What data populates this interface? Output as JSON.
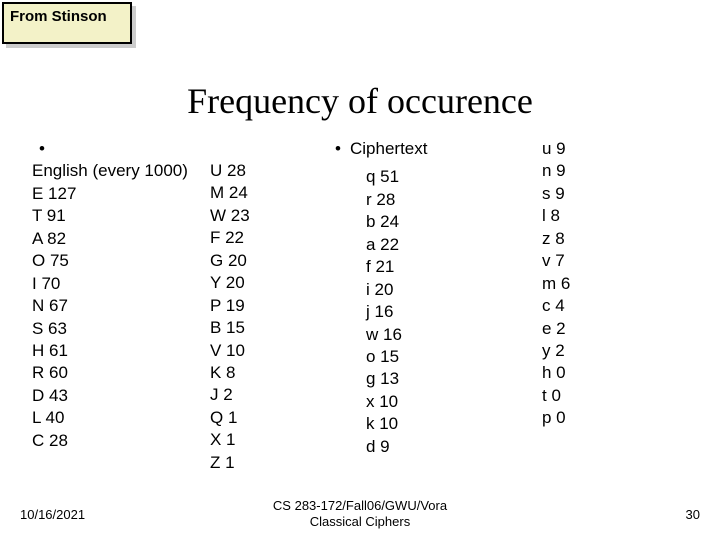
{
  "badge": {
    "text": "From Stinson"
  },
  "title": "Frequency of occurence",
  "english": {
    "header": "English (every 1000)",
    "items": [
      {
        "letter": "E",
        "count": 127
      },
      {
        "letter": "T",
        "count": 91
      },
      {
        "letter": "A",
        "count": 82
      },
      {
        "letter": "O",
        "count": 75
      },
      {
        "letter": "I",
        "count": 70
      },
      {
        "letter": "N",
        "count": 67
      },
      {
        "letter": "S",
        "count": 63
      },
      {
        "letter": "H",
        "count": 61
      },
      {
        "letter": "R",
        "count": 60
      },
      {
        "letter": "D",
        "count": 43
      },
      {
        "letter": "L",
        "count": 40
      },
      {
        "letter": "C",
        "count": 28
      }
    ]
  },
  "english2": {
    "items": [
      {
        "letter": "U",
        "count": 28
      },
      {
        "letter": "M",
        "count": 24
      },
      {
        "letter": "W",
        "count": 23
      },
      {
        "letter": "F",
        "count": 22
      },
      {
        "letter": "G",
        "count": 20
      },
      {
        "letter": "Y",
        "count": 20
      },
      {
        "letter": "P",
        "count": 19
      },
      {
        "letter": "B",
        "count": 15
      },
      {
        "letter": "V",
        "count": 10
      },
      {
        "letter": "K",
        "count": 8
      },
      {
        "letter": "J",
        "count": 2
      },
      {
        "letter": "Q",
        "count": 1
      },
      {
        "letter": "X",
        "count": 1
      },
      {
        "letter": "Z",
        "count": 1
      }
    ]
  },
  "cipher": {
    "header": "Ciphertext",
    "items": [
      {
        "letter": "q",
        "count": 51
      },
      {
        "letter": "r",
        "count": 28
      },
      {
        "letter": "b",
        "count": 24
      },
      {
        "letter": "a",
        "count": 22
      },
      {
        "letter": "f",
        "count": 21
      },
      {
        "letter": "i",
        "count": 20
      },
      {
        "letter": "j",
        "count": 16
      },
      {
        "letter": "w",
        "count": 16
      },
      {
        "letter": "o",
        "count": 15
      },
      {
        "letter": "g",
        "count": 13
      },
      {
        "letter": "x",
        "count": 10
      },
      {
        "letter": "k",
        "count": 10
      },
      {
        "letter": "d",
        "count": 9
      }
    ]
  },
  "cipher2": {
    "items": [
      {
        "letter": "u",
        "count": 9
      },
      {
        "letter": "n",
        "count": 9
      },
      {
        "letter": "s",
        "count": 9
      },
      {
        "letter": "l",
        "count": 8
      },
      {
        "letter": "z",
        "count": 8
      },
      {
        "letter": "v",
        "count": 7
      },
      {
        "letter": "m",
        "count": 6
      },
      {
        "letter": "c",
        "count": 4
      },
      {
        "letter": "e",
        "count": 2
      },
      {
        "letter": "y",
        "count": 2
      },
      {
        "letter": "h",
        "count": 0
      },
      {
        "letter": "t",
        "count": 0
      },
      {
        "letter": "p",
        "count": 0
      }
    ]
  },
  "footer": {
    "date": "10/16/2021",
    "center_line1": "CS 283-172/Fall06/GWU/Vora",
    "center_line2": "Classical Ciphers",
    "page": "30"
  },
  "colors": {
    "badge_bg": "#f3f2c8",
    "badge_border": "#000000",
    "text": "#000000",
    "background": "#ffffff"
  },
  "typography": {
    "body_fontsize_pt": 13,
    "title_fontsize_pt": 27,
    "title_family": "Times New Roman"
  }
}
